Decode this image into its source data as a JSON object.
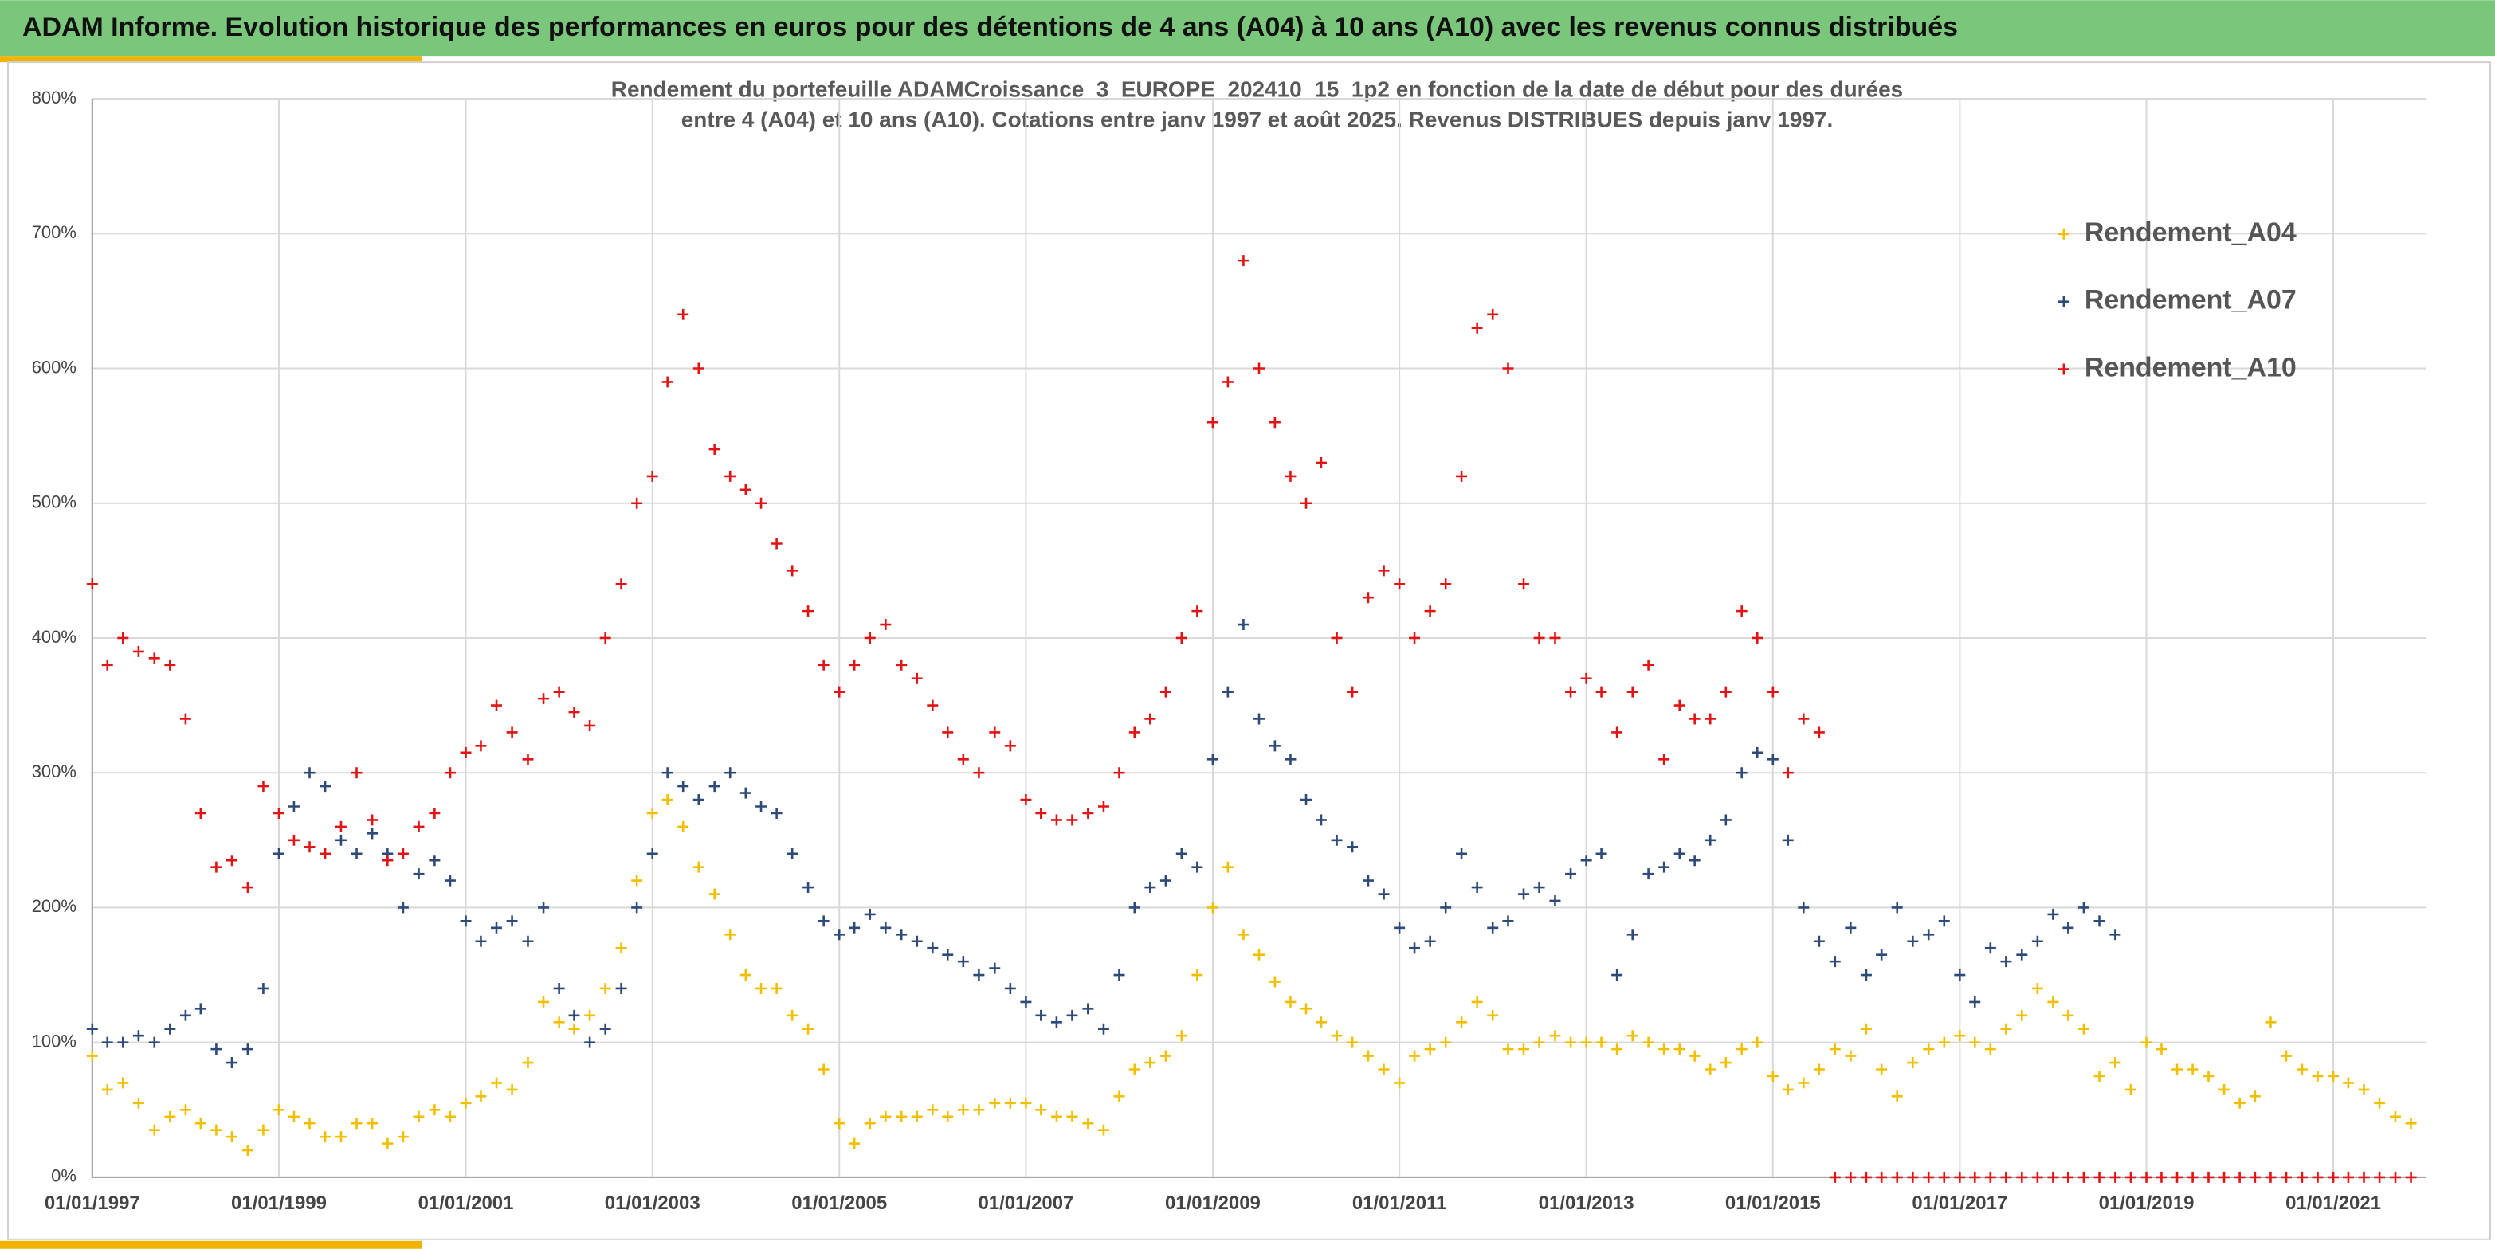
{
  "header": "ADAM Informe. Evolution historique des performances en euros pour des détentions de 4 ans (A04) à 10 ans (A10) avec les revenus connus distribués",
  "chart_data": {
    "type": "scatter",
    "title": [
      "Rendement du portefeuille ADAMCroissance_3_EUROPE_202410_15_1p2 en fonction de la date de début pour des durées",
      "entre 4 (A04) et 10 ans (A10). Cotations entre janv 1997 et août 2025. Revenus DISTRIBUES depuis janv 1997."
    ],
    "legend": "right",
    "grid": true,
    "xlim": [
      "01/01/1997",
      "01/01/2022"
    ],
    "xticks": [
      "01/01/1997",
      "01/01/1999",
      "01/01/2001",
      "01/01/2003",
      "01/01/2005",
      "01/01/2007",
      "01/01/2009",
      "01/01/2011",
      "01/01/2013",
      "01/01/2015",
      "01/01/2017",
      "01/01/2019",
      "01/01/2021"
    ],
    "ylim": [
      0,
      800
    ],
    "yticks": [
      {
        "value": 0,
        "label": "0%"
      },
      {
        "value": 100,
        "label": "100%"
      },
      {
        "value": 200,
        "label": "200%"
      },
      {
        "value": 300,
        "label": "300%"
      },
      {
        "value": 400,
        "label": "400%"
      },
      {
        "value": 500,
        "label": "500%"
      },
      {
        "value": 600,
        "label": "600%"
      },
      {
        "value": 700,
        "label": "700%"
      },
      {
        "value": 800,
        "label": "800%"
      }
    ],
    "x": [
      "01/01/1997",
      "01/03/1997",
      "01/05/1997",
      "01/07/1997",
      "01/09/1997",
      "01/11/1997",
      "01/01/1998",
      "01/03/1998",
      "01/05/1998",
      "01/07/1998",
      "01/09/1998",
      "01/11/1998",
      "01/01/1999",
      "01/03/1999",
      "01/05/1999",
      "01/07/1999",
      "01/09/1999",
      "01/11/1999",
      "01/01/2000",
      "01/03/2000",
      "01/05/2000",
      "01/07/2000",
      "01/09/2000",
      "01/11/2000",
      "01/01/2001",
      "01/03/2001",
      "01/05/2001",
      "01/07/2001",
      "01/09/2001",
      "01/11/2001",
      "01/01/2002",
      "01/03/2002",
      "01/05/2002",
      "01/07/2002",
      "01/09/2002",
      "01/11/2002",
      "01/01/2003",
      "01/03/2003",
      "01/05/2003",
      "01/07/2003",
      "01/09/2003",
      "01/11/2003",
      "01/01/2004",
      "01/03/2004",
      "01/05/2004",
      "01/07/2004",
      "01/09/2004",
      "01/11/2004",
      "01/01/2005",
      "01/03/2005",
      "01/05/2005",
      "01/07/2005",
      "01/09/2005",
      "01/11/2005",
      "01/01/2006",
      "01/03/2006",
      "01/05/2006",
      "01/07/2006",
      "01/09/2006",
      "01/11/2006",
      "01/01/2007",
      "01/03/2007",
      "01/05/2007",
      "01/07/2007",
      "01/09/2007",
      "01/11/2007",
      "01/01/2008",
      "01/03/2008",
      "01/05/2008",
      "01/07/2008",
      "01/09/2008",
      "01/11/2008",
      "01/01/2009",
      "01/03/2009",
      "01/05/2009",
      "01/07/2009",
      "01/09/2009",
      "01/11/2009",
      "01/01/2010",
      "01/03/2010",
      "01/05/2010",
      "01/07/2010",
      "01/09/2010",
      "01/11/2010",
      "01/01/2011",
      "01/03/2011",
      "01/05/2011",
      "01/07/2011",
      "01/09/2011",
      "01/11/2011",
      "01/01/2012",
      "01/03/2012",
      "01/05/2012",
      "01/07/2012",
      "01/09/2012",
      "01/11/2012",
      "01/01/2013",
      "01/03/2013",
      "01/05/2013",
      "01/07/2013",
      "01/09/2013",
      "01/11/2013",
      "01/01/2014",
      "01/03/2014",
      "01/05/2014",
      "01/07/2014",
      "01/09/2014",
      "01/11/2014",
      "01/01/2015",
      "01/03/2015",
      "01/05/2015",
      "01/07/2015",
      "01/09/2015",
      "01/11/2015",
      "01/01/2016",
      "01/03/2016",
      "01/05/2016",
      "01/07/2016",
      "01/09/2016",
      "01/11/2016",
      "01/01/2017",
      "01/03/2017",
      "01/05/2017",
      "01/07/2017",
      "01/09/2017",
      "01/11/2017",
      "01/01/2018",
      "01/03/2018",
      "01/05/2018",
      "01/07/2018",
      "01/09/2018",
      "01/11/2018",
      "01/01/2019",
      "01/03/2019",
      "01/05/2019",
      "01/07/2019",
      "01/09/2019",
      "01/11/2019",
      "01/01/2020",
      "01/03/2020",
      "01/05/2020",
      "01/07/2020",
      "01/09/2020",
      "01/11/2020",
      "01/01/2021",
      "01/03/2021",
      "01/05/2021",
      "01/07/2021",
      "01/09/2021",
      "01/11/2021"
    ],
    "series": [
      {
        "name": "Rendement_A04",
        "color": "#f2bf00",
        "values": [
          90,
          65,
          70,
          55,
          35,
          45,
          50,
          40,
          35,
          30,
          20,
          35,
          50,
          45,
          40,
          30,
          30,
          40,
          40,
          25,
          30,
          45,
          50,
          45,
          55,
          60,
          70,
          65,
          85,
          130,
          115,
          110,
          120,
          140,
          170,
          220,
          270,
          280,
          260,
          230,
          210,
          180,
          150,
          140,
          140,
          120,
          110,
          80,
          40,
          25,
          40,
          45,
          45,
          45,
          50,
          45,
          50,
          50,
          55,
          55,
          55,
          50,
          45,
          45,
          40,
          35,
          60,
          80,
          85,
          90,
          105,
          150,
          200,
          230,
          180,
          165,
          145,
          130,
          125,
          115,
          105,
          100,
          90,
          80,
          70,
          90,
          95,
          100,
          115,
          130,
          120,
          95,
          95,
          100,
          105,
          100,
          100,
          100,
          95,
          105,
          100,
          95,
          95,
          90,
          80,
          85,
          95,
          100,
          75,
          65,
          70,
          80,
          95,
          90,
          110,
          80,
          60,
          85,
          95,
          100,
          105,
          100,
          95,
          110,
          120,
          140,
          130,
          120,
          110,
          75,
          85,
          65,
          100,
          95,
          80,
          80,
          75,
          65,
          55,
          60,
          115,
          90,
          80,
          75,
          75,
          70,
          65,
          55,
          45,
          40
        ]
      },
      {
        "name": "Rendement_A07",
        "color": "#2e4a78",
        "values": [
          110,
          100,
          100,
          105,
          100,
          110,
          120,
          125,
          95,
          85,
          95,
          140,
          240,
          275,
          300,
          290,
          250,
          240,
          255,
          240,
          200,
          225,
          235,
          220,
          190,
          175,
          185,
          190,
          175,
          200,
          140,
          120,
          100,
          110,
          140,
          200,
          240,
          300,
          290,
          280,
          290,
          300,
          285,
          275,
          270,
          240,
          215,
          190,
          180,
          185,
          195,
          185,
          180,
          175,
          170,
          165,
          160,
          150,
          155,
          140,
          130,
          120,
          115,
          120,
          125,
          110,
          150,
          200,
          215,
          220,
          240,
          230,
          310,
          360,
          410,
          340,
          320,
          310,
          280,
          265,
          250,
          245,
          220,
          210,
          185,
          170,
          175,
          200,
          240,
          215,
          185,
          190,
          210,
          215,
          205,
          225,
          235,
          240,
          150,
          180,
          225,
          230,
          240,
          235,
          250,
          265,
          300,
          315,
          310,
          250,
          200,
          175,
          160,
          185,
          150,
          165,
          200,
          175,
          180,
          190,
          150,
          130,
          170,
          160,
          165,
          175,
          195,
          185,
          200,
          190,
          180,
          null,
          null,
          null,
          null,
          null,
          null,
          null,
          null,
          null,
          null,
          null,
          null,
          null,
          null,
          null,
          null,
          null,
          null,
          null
        ]
      },
      {
        "name": "Rendement_A10",
        "color": "#e01414",
        "values": [
          440,
          380,
          400,
          390,
          385,
          380,
          340,
          270,
          230,
          235,
          215,
          290,
          270,
          250,
          245,
          240,
          260,
          300,
          265,
          235,
          240,
          260,
          270,
          300,
          315,
          320,
          350,
          330,
          310,
          355,
          360,
          345,
          335,
          400,
          440,
          500,
          520,
          590,
          640,
          600,
          540,
          520,
          510,
          500,
          470,
          450,
          420,
          380,
          360,
          380,
          400,
          410,
          380,
          370,
          350,
          330,
          310,
          300,
          330,
          320,
          280,
          270,
          265,
          265,
          270,
          275,
          300,
          330,
          340,
          360,
          400,
          420,
          560,
          590,
          680,
          600,
          560,
          520,
          500,
          530,
          400,
          360,
          430,
          450,
          440,
          400,
          420,
          440,
          520,
          630,
          640,
          600,
          440,
          400,
          400,
          360,
          370,
          360,
          330,
          360,
          380,
          310,
          350,
          340,
          340,
          360,
          420,
          400,
          360,
          300,
          340,
          330,
          0,
          0,
          0,
          0,
          0,
          0,
          0,
          0,
          0,
          0,
          0,
          0,
          0,
          0,
          0,
          0,
          0,
          0,
          0,
          0,
          0,
          0,
          0,
          0,
          0,
          0,
          0,
          0,
          0,
          0,
          0,
          0,
          0,
          0,
          0,
          0,
          0,
          0
        ]
      }
    ]
  }
}
